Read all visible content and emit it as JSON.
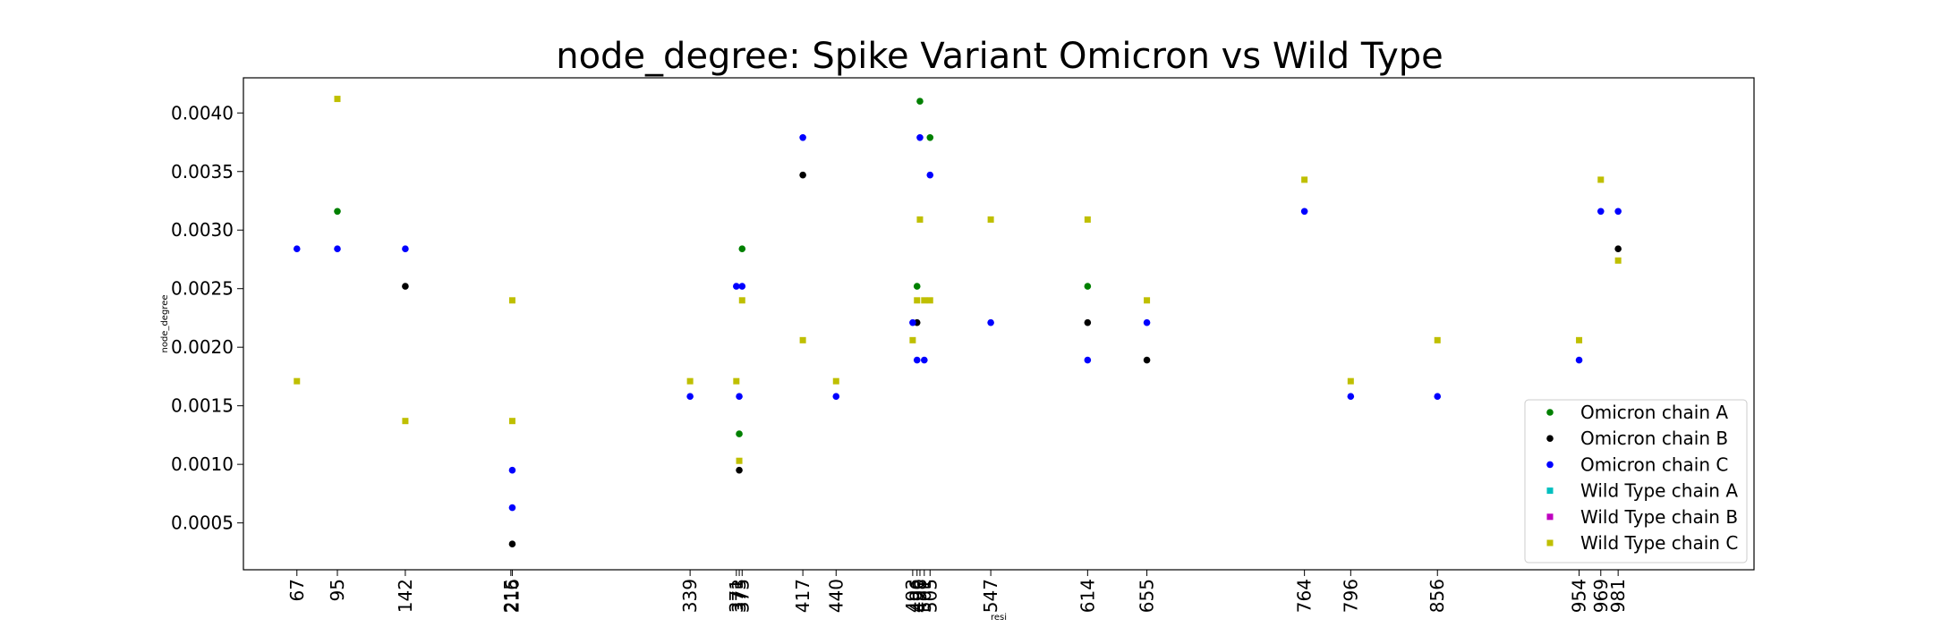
{
  "chart_data": {
    "type": "scatter",
    "title": "node_degree: Spike Variant Omicron vs Wild Type",
    "xlabel": "resi",
    "ylabel": "node_degree",
    "ylim": [
      0.0001,
      0.0043
    ],
    "yticks": [
      0.0005,
      0.001,
      0.0015,
      0.002,
      0.0025,
      0.003,
      0.0035,
      0.004
    ],
    "ytick_labels": [
      "0.0005",
      "0.0010",
      "0.0015",
      "0.0020",
      "0.0025",
      "0.0030",
      "0.0035",
      "0.0040"
    ],
    "xlim": [
      30,
      1075
    ],
    "xticks": [
      67,
      95,
      142,
      215,
      216,
      339,
      371,
      373,
      375,
      417,
      440,
      493,
      496,
      498,
      501,
      505,
      547,
      614,
      655,
      764,
      796,
      856,
      954,
      969,
      981
    ],
    "xtick_labels": [
      "67",
      "95",
      "142",
      "215",
      "216",
      "339",
      "371",
      "373",
      "375",
      "417",
      "440",
      "493",
      "496",
      "498",
      "501",
      "505",
      "547",
      "614",
      "655",
      "764",
      "796",
      "856",
      "954",
      "969",
      "981"
    ],
    "legend_position": "lower-right",
    "grid": false,
    "series": [
      {
        "name": "Omicron chain A",
        "color": "#008000",
        "marker": "circle",
        "points": [
          [
            95,
            0.00316
          ],
          [
            375,
            0.00284
          ],
          [
            373,
            0.00126
          ],
          [
            496,
            0.00252
          ],
          [
            498,
            0.0041
          ],
          [
            505,
            0.00379
          ],
          [
            614,
            0.00252
          ]
        ]
      },
      {
        "name": "Omicron chain B",
        "color": "#000000",
        "marker": "circle",
        "points": [
          [
            142,
            0.00252
          ],
          [
            216,
            0.00032
          ],
          [
            373,
            0.00095
          ],
          [
            417,
            0.00347
          ],
          [
            496,
            0.00221
          ],
          [
            614,
            0.00221
          ],
          [
            655,
            0.00189
          ],
          [
            981,
            0.00284
          ]
        ]
      },
      {
        "name": "Omicron chain C",
        "color": "#0000ff",
        "marker": "circle",
        "points": [
          [
            67,
            0.00284
          ],
          [
            95,
            0.00284
          ],
          [
            142,
            0.00284
          ],
          [
            216,
            0.00095
          ],
          [
            216,
            0.00063
          ],
          [
            339,
            0.00158
          ],
          [
            371,
            0.00252
          ],
          [
            375,
            0.00252
          ],
          [
            373,
            0.00158
          ],
          [
            417,
            0.00379
          ],
          [
            440,
            0.00158
          ],
          [
            493,
            0.00221
          ],
          [
            496,
            0.00189
          ],
          [
            498,
            0.00379
          ],
          [
            501,
            0.00189
          ],
          [
            505,
            0.00347
          ],
          [
            547,
            0.00221
          ],
          [
            614,
            0.00189
          ],
          [
            655,
            0.00221
          ],
          [
            764,
            0.00316
          ],
          [
            796,
            0.00158
          ],
          [
            856,
            0.00158
          ],
          [
            954,
            0.00189
          ],
          [
            969,
            0.00316
          ],
          [
            981,
            0.00316
          ]
        ]
      },
      {
        "name": "Wild Type chain A",
        "color": "#00bfbf",
        "marker": "square",
        "points": []
      },
      {
        "name": "Wild Type chain B",
        "color": "#bf00bf",
        "marker": "square",
        "points": []
      },
      {
        "name": "Wild Type chain C",
        "color": "#bfbf00",
        "marker": "square",
        "points": [
          [
            67,
            0.00171
          ],
          [
            95,
            0.00412
          ],
          [
            142,
            0.00137
          ],
          [
            216,
            0.0024
          ],
          [
            216,
            0.00137
          ],
          [
            339,
            0.00171
          ],
          [
            371,
            0.00171
          ],
          [
            373,
            0.00103
          ],
          [
            375,
            0.0024
          ],
          [
            417,
            0.00206
          ],
          [
            440,
            0.00171
          ],
          [
            493,
            0.00206
          ],
          [
            496,
            0.0024
          ],
          [
            498,
            0.00309
          ],
          [
            501,
            0.0024
          ],
          [
            505,
            0.0024
          ],
          [
            547,
            0.00309
          ],
          [
            614,
            0.00309
          ],
          [
            655,
            0.0024
          ],
          [
            764,
            0.00343
          ],
          [
            796,
            0.00171
          ],
          [
            856,
            0.00206
          ],
          [
            954,
            0.00206
          ],
          [
            969,
            0.00343
          ],
          [
            981,
            0.00274
          ]
        ]
      }
    ]
  }
}
